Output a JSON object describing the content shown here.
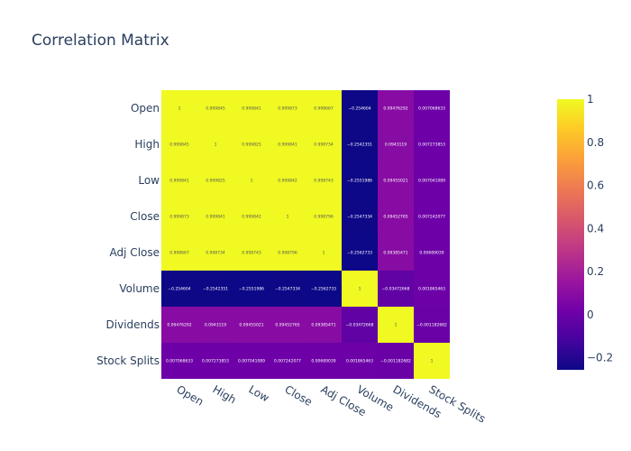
{
  "chart_data": {
    "type": "heatmap",
    "title": "Correlation Matrix",
    "x": [
      "Open",
      "High",
      "Low",
      "Close",
      "Adj Close",
      "Volume",
      "Dividends",
      "Stock Splits"
    ],
    "y": [
      "Open",
      "High",
      "Low",
      "Close",
      "Adj Close",
      "Volume",
      "Dividends",
      "Stock Splits"
    ],
    "z": [
      [
        1,
        0.999845,
        0.999841,
        0.999873,
        0.998667,
        -0.254604,
        0.09476292,
        0.007068633
      ],
      [
        0.999845,
        1,
        0.999825,
        0.999841,
        0.998734,
        -0.2542351,
        0.0943119,
        0.007273853
      ],
      [
        0.999841,
        0.999825,
        1,
        0.999842,
        0.998743,
        -0.2551986,
        0.09455021,
        0.007041089
      ],
      [
        0.999873,
        0.999841,
        0.999842,
        1,
        0.998796,
        -0.2547334,
        0.09452765,
        0.007242077
      ],
      [
        0.998667,
        0.998734,
        0.998743,
        0.998796,
        1,
        -0.2562733,
        0.09385471,
        0.00689039
      ],
      [
        -0.254604,
        -0.2542351,
        -0.2551986,
        -0.2547334,
        -0.2562733,
        1,
        -0.03472668,
        0.001865463
      ],
      [
        0.09476292,
        0.0943119,
        0.09455021,
        0.09452765,
        0.09385471,
        -0.03472668,
        1,
        -0.001182682
      ],
      [
        0.007068633,
        0.007273853,
        0.007041089,
        0.007242077,
        0.00689039,
        0.001865463,
        -0.001182682,
        1
      ]
    ],
    "z_labels": [
      [
        "1",
        "0.999845",
        "0.999841",
        "0.999873",
        "0.998667",
        "−0.254604",
        "0.09476292",
        "0.007068633"
      ],
      [
        "0.999845",
        "1",
        "0.999825",
        "0.999841",
        "0.998734",
        "−0.2542351",
        "0.0943119",
        "0.007273853"
      ],
      [
        "0.999841",
        "0.999825",
        "1",
        "0.999842",
        "0.998743",
        "−0.2551986",
        "0.09455021",
        "0.007041089"
      ],
      [
        "0.999873",
        "0.999841",
        "0.999842",
        "1",
        "0.998796",
        "−0.2547334",
        "0.09452765",
        "0.007242077"
      ],
      [
        "0.998667",
        "0.998734",
        "0.998743",
        "0.998796",
        "1",
        "−0.2562733",
        "0.09385471",
        "0.00689039"
      ],
      [
        "−0.254604",
        "−0.2542351",
        "−0.2551986",
        "−0.2547334",
        "−0.2562733",
        "1",
        "−0.03472668",
        "0.001865463"
      ],
      [
        "0.09476292",
        "0.0943119",
        "0.09455021",
        "0.09452765",
        "0.09385471",
        "−0.03472668",
        "1",
        "−0.001182682"
      ],
      [
        "0.007068633",
        "0.007273853",
        "0.007041089",
        "0.007242077",
        "0.00689039",
        "0.001865463",
        "−0.001182682",
        "1"
      ]
    ],
    "zrange": [
      -0.2562733,
      1
    ],
    "colorscale": "plasma",
    "colorscale_stops": [
      "#0d0887",
      "#46039f",
      "#7201a8",
      "#9c179e",
      "#bd3786",
      "#d8576b",
      "#ed7953",
      "#fb9f3a",
      "#fdca26",
      "#f0f921"
    ],
    "colorbar": {
      "tick_labels": [
        "1",
        "0.8",
        "0.6",
        "0.4",
        "0.2",
        "0",
        "−0.2"
      ],
      "tick_values": [
        1,
        0.8,
        0.6,
        0.4,
        0.2,
        0,
        -0.2
      ]
    },
    "grid": false
  }
}
